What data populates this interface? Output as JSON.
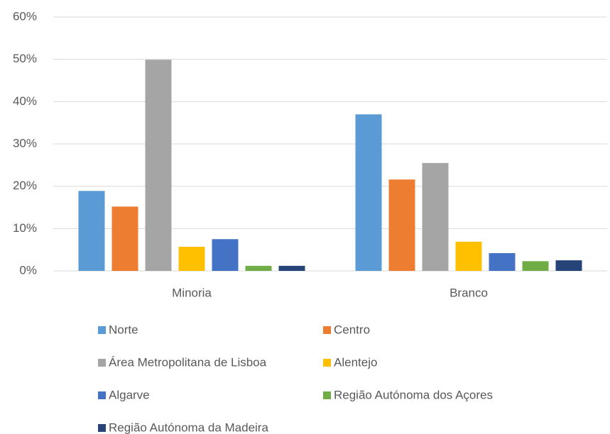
{
  "chart_data": {
    "type": "bar",
    "categories": [
      "Minoria",
      "Branco"
    ],
    "series": [
      {
        "name": "Norte",
        "color": "#5b9bd5",
        "values": [
          18.9,
          37
        ]
      },
      {
        "name": "Centro",
        "color": "#ed7d31",
        "values": [
          15.2,
          21.6
        ]
      },
      {
        "name": "Área Metropolitana de Lisboa",
        "color": "#a5a5a5",
        "values": [
          49.9,
          25.5
        ]
      },
      {
        "name": "Alentejo",
        "color": "#ffc000",
        "values": [
          5.7,
          6.9
        ]
      },
      {
        "name": "Algarve",
        "color": "#4472c4",
        "values": [
          7.5,
          4.2
        ]
      },
      {
        "name": "Região Autónoma dos Açores",
        "color": "#70ad47",
        "values": [
          1.2,
          2.3
        ]
      },
      {
        "name": "Região Autónoma da Madeira",
        "color": "#264478",
        "values": [
          1.2,
          2.5
        ]
      }
    ],
    "ylim": [
      0,
      60
    ],
    "yticks": [
      {
        "value": 0,
        "label": "0%"
      },
      {
        "value": 10,
        "label": "10%"
      },
      {
        "value": 20,
        "label": "20%"
      },
      {
        "value": 30,
        "label": "30%"
      },
      {
        "value": 40,
        "label": "40%"
      },
      {
        "value": 50,
        "label": "50%"
      },
      {
        "value": 60,
        "label": "60%"
      }
    ],
    "grid": true,
    "legend": "bottom"
  }
}
